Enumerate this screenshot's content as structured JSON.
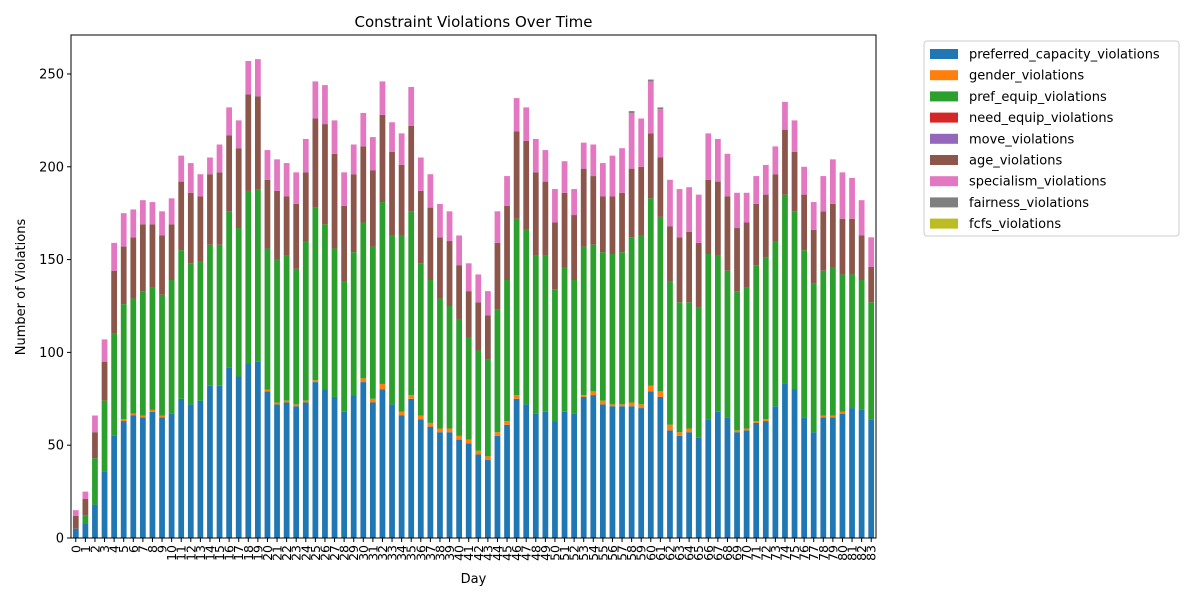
{
  "chart_data": {
    "type": "bar",
    "stacked": true,
    "title": "Constraint Violations Over Time",
    "xlabel": "Day",
    "ylabel": "Number of Violations",
    "ylim": [
      0,
      271
    ],
    "yticks": [
      0,
      50,
      100,
      150,
      200,
      250
    ],
    "grid": false,
    "legend_position": "outside-right",
    "categories": [
      "0",
      "1",
      "2",
      "3",
      "4",
      "5",
      "6",
      "7",
      "8",
      "9",
      "10",
      "11",
      "12",
      "13",
      "14",
      "15",
      "16",
      "17",
      "18",
      "19",
      "20",
      "21",
      "22",
      "23",
      "24",
      "25",
      "26",
      "27",
      "28",
      "29",
      "30",
      "31",
      "32",
      "33",
      "34",
      "35",
      "36",
      "37",
      "38",
      "39",
      "40",
      "41",
      "42",
      "43",
      "44",
      "45",
      "46",
      "47",
      "48",
      "49",
      "50",
      "51",
      "52",
      "53",
      "54",
      "55",
      "56",
      "57",
      "58",
      "59",
      "60",
      "61",
      "62",
      "63",
      "64",
      "65",
      "66",
      "67",
      "68",
      "69",
      "70",
      "71",
      "72",
      "73",
      "74",
      "75",
      "76",
      "77",
      "78",
      "79",
      "80",
      "81",
      "82",
      "83"
    ],
    "series": [
      {
        "name": "preferred_capacity_violations",
        "color": "#1f77b4",
        "values": [
          5,
          8,
          18,
          36,
          55,
          63,
          66,
          65,
          68,
          65,
          67,
          75,
          72,
          74,
          82,
          82,
          92,
          87,
          94,
          95,
          79,
          72,
          73,
          71,
          73,
          84,
          80,
          76,
          68,
          77,
          84,
          73,
          80,
          72,
          66,
          75,
          64,
          60,
          57,
          57,
          53,
          51,
          45,
          42,
          55,
          61,
          75,
          72,
          67,
          68,
          63,
          68,
          67,
          76,
          77,
          72,
          71,
          71,
          71,
          70,
          79,
          76,
          58,
          55,
          57,
          54,
          64,
          68,
          65,
          57,
          58,
          62,
          63,
          71,
          83,
          80,
          65,
          57,
          65,
          65,
          67,
          70,
          69,
          64
        ]
      },
      {
        "name": "gender_violations",
        "color": "#ff7f0e",
        "values": [
          0,
          0,
          0,
          0,
          0,
          1,
          1,
          1,
          1,
          1,
          0,
          0,
          0,
          0,
          0,
          0,
          0,
          0,
          0,
          0,
          1,
          1,
          1,
          1,
          1,
          1,
          0,
          0,
          0,
          0,
          2,
          2,
          3,
          0,
          2,
          2,
          2,
          2,
          2,
          2,
          2,
          2,
          2,
          2,
          2,
          2,
          2,
          0,
          0,
          0,
          0,
          0,
          0,
          1,
          2,
          2,
          1,
          1,
          2,
          2,
          3,
          3,
          3,
          2,
          2,
          0,
          0,
          0,
          0,
          1,
          1,
          1,
          1,
          0,
          0,
          0,
          0,
          0,
          1,
          1,
          1,
          0,
          0,
          0
        ]
      },
      {
        "name": "pref_equip_violations",
        "color": "#2ca02c",
        "values": [
          0,
          4,
          25,
          38,
          55,
          62,
          62,
          67,
          66,
          65,
          72,
          80,
          76,
          75,
          76,
          76,
          84,
          80,
          93,
          93,
          76,
          77,
          78,
          73,
          86,
          93,
          89,
          80,
          70,
          77,
          84,
          82,
          98,
          91,
          95,
          99,
          82,
          77,
          70,
          66,
          63,
          55,
          54,
          52,
          66,
          76,
          95,
          94,
          85,
          84,
          71,
          78,
          72,
          80,
          79,
          80,
          81,
          82,
          89,
          91,
          101,
          94,
          77,
          70,
          68,
          70,
          89,
          84,
          79,
          75,
          76,
          84,
          87,
          89,
          102,
          96,
          90,
          80,
          78,
          80,
          74,
          72,
          70,
          63
        ]
      },
      {
        "name": "need_equip_violations",
        "color": "#d62728",
        "values": [
          0,
          0,
          0,
          0,
          0,
          0,
          0,
          0,
          0,
          0,
          0,
          0,
          0,
          0,
          0,
          0,
          0,
          0,
          0,
          0,
          0,
          0,
          0,
          0,
          0,
          0,
          0,
          0,
          0,
          0,
          0,
          0,
          0,
          0,
          0,
          0,
          0,
          0,
          0,
          0,
          0,
          0,
          0,
          0,
          0,
          0,
          0,
          0,
          0,
          0,
          0,
          0,
          0,
          0,
          0,
          0,
          0,
          0,
          0,
          0,
          0,
          0,
          0,
          0,
          0,
          0,
          0,
          0,
          0,
          0,
          0,
          0,
          0,
          0,
          0,
          0,
          0,
          0,
          0,
          0,
          0,
          0,
          0,
          0
        ]
      },
      {
        "name": "move_violations",
        "color": "#9467bd",
        "values": [
          0,
          0,
          0,
          0,
          0,
          0,
          0,
          0,
          0,
          0,
          0,
          0,
          0,
          0,
          0,
          0,
          0,
          0,
          0,
          0,
          0,
          0,
          0,
          0,
          0,
          0,
          0,
          0,
          0,
          0,
          0,
          0,
          0,
          0,
          0,
          0,
          0,
          0,
          0,
          0,
          0,
          0,
          0,
          0,
          0,
          0,
          0,
          0,
          0,
          0,
          0,
          0,
          0,
          0,
          0,
          0,
          0,
          0,
          0,
          0,
          0,
          0,
          0,
          0,
          0,
          0,
          0,
          0,
          0,
          0,
          0,
          0,
          0,
          0,
          0,
          0,
          0,
          0,
          0,
          0,
          0,
          0,
          0,
          0
        ]
      },
      {
        "name": "age_violations",
        "color": "#8c564b",
        "values": [
          7,
          9,
          14,
          21,
          34,
          31,
          33,
          36,
          34,
          32,
          30,
          37,
          38,
          35,
          38,
          39,
          41,
          43,
          52,
          50,
          37,
          37,
          32,
          35,
          37,
          48,
          54,
          51,
          41,
          42,
          41,
          41,
          47,
          45,
          38,
          46,
          39,
          39,
          33,
          35,
          29,
          25,
          26,
          24,
          36,
          40,
          47,
          48,
          45,
          40,
          36,
          40,
          35,
          42,
          37,
          30,
          31,
          32,
          37,
          37,
          35,
          32,
          30,
          35,
          38,
          35,
          40,
          40,
          40,
          34,
          35,
          33,
          34,
          36,
          35,
          32,
          30,
          29,
          32,
          34,
          30,
          30,
          24,
          19
        ]
      },
      {
        "name": "specialism_violations",
        "color": "#e377c2",
        "values": [
          3,
          4,
          9,
          12,
          15,
          18,
          15,
          13,
          12,
          13,
          14,
          14,
          16,
          12,
          9,
          15,
          15,
          15,
          18,
          20,
          16,
          17,
          18,
          17,
          18,
          20,
          21,
          18,
          18,
          16,
          18,
          18,
          18,
          16,
          17,
          21,
          18,
          18,
          18,
          16,
          16,
          15,
          15,
          13,
          17,
          16,
          18,
          18,
          18,
          17,
          18,
          17,
          14,
          14,
          17,
          18,
          22,
          24,
          30,
          26,
          28,
          26,
          25,
          26,
          24,
          26,
          25,
          23,
          23,
          19,
          16,
          15,
          16,
          15,
          15,
          17,
          15,
          15,
          19,
          24,
          25,
          22,
          19,
          16
        ]
      },
      {
        "name": "fairness_violations",
        "color": "#7f7f7f",
        "values": [
          0,
          0,
          0,
          0,
          0,
          0,
          0,
          0,
          0,
          0,
          0,
          0,
          0,
          0,
          0,
          0,
          0,
          0,
          0,
          0,
          0,
          0,
          0,
          0,
          0,
          0,
          0,
          0,
          0,
          0,
          0,
          0,
          0,
          0,
          0,
          0,
          0,
          0,
          0,
          0,
          0,
          0,
          0,
          0,
          0,
          0,
          0,
          0,
          0,
          0,
          0,
          0,
          0,
          0,
          0,
          0,
          0,
          0,
          1,
          0,
          1,
          1,
          0,
          0,
          0,
          0,
          0,
          0,
          0,
          0,
          0,
          0,
          0,
          0,
          0,
          0,
          0,
          0,
          0,
          0,
          0,
          0,
          0,
          0
        ]
      },
      {
        "name": "fcfs_violations",
        "color": "#bcbd22",
        "values": [
          0,
          0,
          0,
          0,
          0,
          0,
          0,
          0,
          0,
          0,
          0,
          0,
          0,
          0,
          0,
          0,
          0,
          0,
          0,
          0,
          0,
          0,
          0,
          0,
          0,
          0,
          0,
          0,
          0,
          0,
          0,
          0,
          0,
          0,
          0,
          0,
          0,
          0,
          0,
          0,
          0,
          0,
          0,
          0,
          0,
          0,
          0,
          0,
          0,
          0,
          0,
          0,
          0,
          0,
          0,
          0,
          0,
          0,
          0,
          0,
          0,
          0,
          0,
          0,
          0,
          0,
          0,
          0,
          0,
          0,
          0,
          0,
          0,
          0,
          0,
          0,
          0,
          0,
          0,
          0,
          0,
          0,
          0,
          0
        ]
      }
    ]
  }
}
